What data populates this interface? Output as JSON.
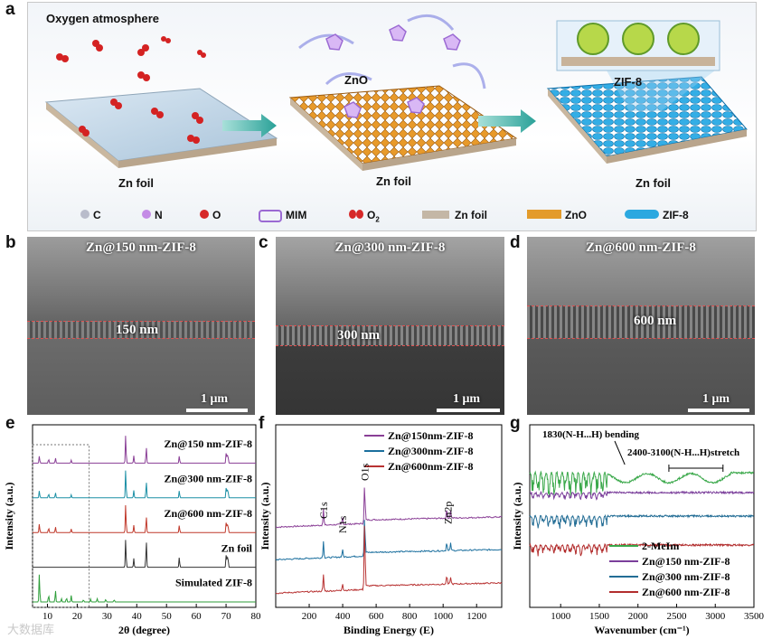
{
  "panels": {
    "a": "a",
    "b": "b",
    "c": "c",
    "d": "d",
    "e": "e",
    "f": "f",
    "g": "g"
  },
  "schematic": {
    "oxygen_atmosphere": "Oxygen atmosphere",
    "zn_foil_1": "Zn foil",
    "zno": "ZnO",
    "zn_foil_2": "Zn foil",
    "zif8": "ZIF-8",
    "zn_foil_3": "Zn foil",
    "legend": [
      {
        "name": "c",
        "label": "C",
        "color": "#b9bccb"
      },
      {
        "name": "n",
        "label": "N",
        "color": "#c48be6"
      },
      {
        "name": "o",
        "label": "O",
        "color": "#d62828"
      },
      {
        "name": "mim",
        "label": "MIM",
        "color": "#9b6ad3"
      },
      {
        "name": "o2",
        "label": "O",
        "sub": "2",
        "color": "#d62828"
      },
      {
        "name": "zn-foil",
        "label": "Zn foil",
        "color": "#c4b7a6"
      },
      {
        "name": "zno",
        "label": "ZnO",
        "color": "#e39b2b"
      },
      {
        "name": "zif8",
        "label": "ZIF-8",
        "color": "#2ba8e0"
      }
    ]
  },
  "sem": [
    {
      "title": "Zn@150 nm-ZIF-8",
      "depth": "150 nm",
      "scale": "1 μm"
    },
    {
      "title": "Zn@300 nm-ZIF-8",
      "depth": "300 nm",
      "scale": "1 μm"
    },
    {
      "title": "Zn@600 nm-ZIF-8",
      "depth": "600 nm",
      "scale": "1 μm"
    }
  ],
  "chart_data": [
    {
      "panel": "e",
      "type": "line",
      "xlabel": "2θ (degree)",
      "ylabel": "Intensity (a.u.)",
      "xlim": [
        5,
        80
      ],
      "xticks": [
        "10",
        "20",
        "30",
        "40",
        "50",
        "60",
        "70",
        "80"
      ],
      "series": [
        {
          "name": "Zn@150 nm-ZIF-8",
          "color": "#8a3f96",
          "peaks": [
            [
              7.3,
              0.25
            ],
            [
              10.4,
              0.15
            ],
            [
              12.7,
              0.18
            ],
            [
              18.0,
              0.1
            ],
            [
              36.3,
              1.0
            ],
            [
              39.0,
              0.25
            ],
            [
              43.2,
              0.55
            ],
            [
              54.3,
              0.25
            ],
            [
              70.1,
              0.45
            ],
            [
              70.6,
              0.35
            ]
          ]
        },
        {
          "name": "Zn@300 nm-ZIF-8",
          "color": "#1b8fa5",
          "peaks": [
            [
              7.3,
              0.25
            ],
            [
              10.4,
              0.15
            ],
            [
              12.7,
              0.18
            ],
            [
              18.0,
              0.1
            ],
            [
              36.3,
              1.0
            ],
            [
              39.0,
              0.25
            ],
            [
              43.2,
              0.55
            ],
            [
              54.3,
              0.25
            ],
            [
              70.1,
              0.45
            ],
            [
              70.6,
              0.35
            ]
          ]
        },
        {
          "name": "Zn@600 nm-ZIF-8",
          "color": "#c0392b",
          "peaks": [
            [
              7.3,
              0.3
            ],
            [
              10.4,
              0.17
            ],
            [
              12.7,
              0.2
            ],
            [
              18.0,
              0.12
            ],
            [
              36.3,
              1.0
            ],
            [
              39.0,
              0.25
            ],
            [
              43.2,
              0.55
            ],
            [
              54.3,
              0.25
            ],
            [
              70.1,
              0.45
            ],
            [
              70.6,
              0.35
            ]
          ]
        },
        {
          "name": "Zn foil",
          "color": "#333333",
          "peaks": [
            [
              36.3,
              1.0
            ],
            [
              39.0,
              0.3
            ],
            [
              43.2,
              0.9
            ],
            [
              54.3,
              0.35
            ],
            [
              70.1,
              0.55
            ],
            [
              70.6,
              0.45
            ]
          ]
        },
        {
          "name": "Simulated ZIF-8",
          "color": "#2e9e3a",
          "peaks": [
            [
              7.3,
              1.0
            ],
            [
              10.4,
              0.25
            ],
            [
              12.7,
              0.4
            ],
            [
              14.7,
              0.12
            ],
            [
              16.4,
              0.15
            ],
            [
              18.0,
              0.22
            ],
            [
              22.1,
              0.08
            ],
            [
              24.5,
              0.1
            ],
            [
              26.7,
              0.12
            ],
            [
              29.6,
              0.1
            ],
            [
              32.4,
              0.08
            ]
          ]
        }
      ]
    },
    {
      "panel": "f",
      "type": "line",
      "xlabel": "Binding Energy (E)",
      "ylabel": "Intensity (a.u.)",
      "xlim": [
        0,
        1350
      ],
      "xticks": [
        "200",
        "400",
        "600",
        "800",
        "1000",
        "1200"
      ],
      "annotations": [
        "C1s",
        "N1s",
        "O1s",
        "Zn2p"
      ],
      "series": [
        {
          "name": "Zn@150nm-ZIF-8",
          "color": "#8a3f96"
        },
        {
          "name": "Zn@300nm-ZIF-8",
          "color": "#1b6f9e"
        },
        {
          "name": "Zn@600nm-ZIF-8",
          "color": "#b83232"
        }
      ]
    },
    {
      "panel": "g",
      "type": "line",
      "xlabel": "Wavenumber (cm⁻¹)",
      "ylabel": "Intensity (a.u.)",
      "xlim": [
        600,
        3500
      ],
      "xticks": [
        "1000",
        "1500",
        "2000",
        "2500",
        "3000",
        "3500"
      ],
      "annotations": [
        "1830(N-H...H) bending",
        "2400-3100(N-H...H)stretch"
      ],
      "series": [
        {
          "name": "2-MeIm",
          "color": "#3aa84a"
        },
        {
          "name": "Zn@150 nm-ZIF-8",
          "color": "#7b3f9b"
        },
        {
          "name": "Zn@300 nm-ZIF-8",
          "color": "#236d95"
        },
        {
          "name": "Zn@600 nm-ZIF-8",
          "color": "#b22d2d"
        }
      ]
    }
  ],
  "watermark": "大数据库"
}
